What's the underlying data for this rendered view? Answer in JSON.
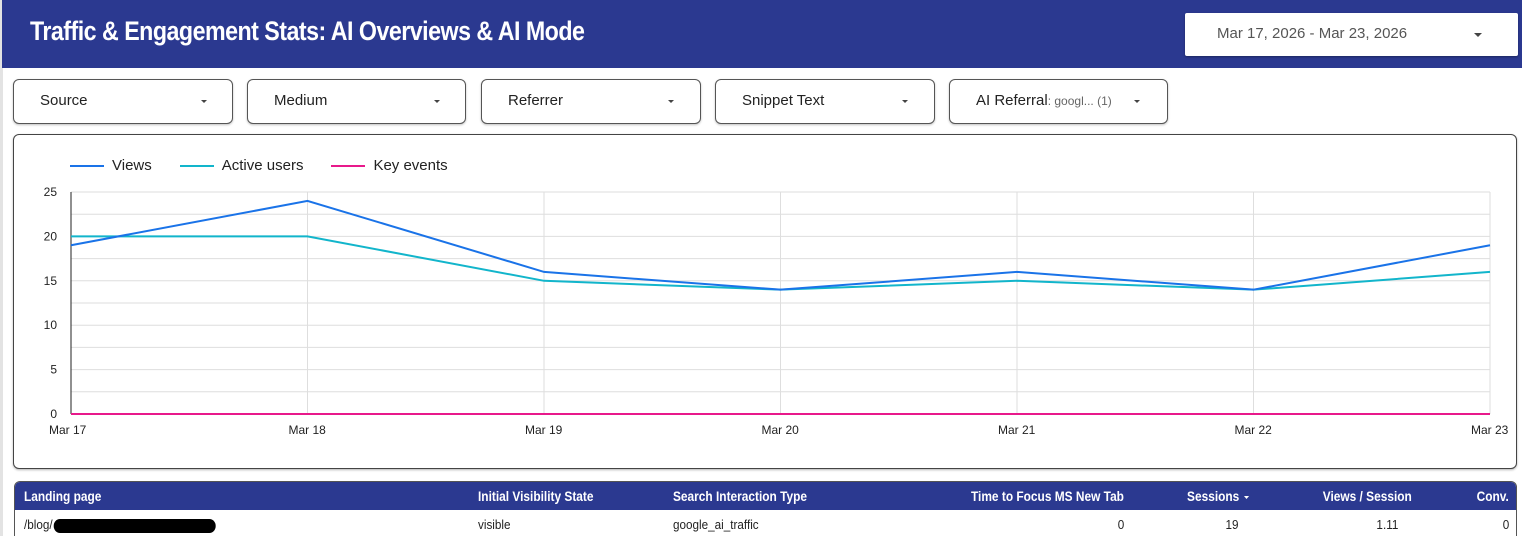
{
  "header": {
    "title": "Traffic & Engagement Stats: AI Overviews & AI Mode",
    "date_range": "Mar 17, 2026 - Mar 23, 2026",
    "background": "#2b3990"
  },
  "filters": [
    {
      "label": "Source",
      "value": ""
    },
    {
      "label": "Medium",
      "value": ""
    },
    {
      "label": "Referrer",
      "value": ""
    },
    {
      "label": "Snippet Text",
      "value": ""
    },
    {
      "label": "AI Referral",
      "value": ": googl... (1)"
    }
  ],
  "chart_data": {
    "type": "line",
    "title": "",
    "xlabel": "",
    "ylabel": "",
    "categories": [
      "Mar 17",
      "Mar 18",
      "Mar 19",
      "Mar 20",
      "Mar 21",
      "Mar 22",
      "Mar 23"
    ],
    "series": [
      {
        "name": "Views",
        "color": "#1a73e8",
        "values": [
          19,
          24,
          16,
          14,
          16,
          14,
          19
        ]
      },
      {
        "name": "Active users",
        "color": "#12b5cb",
        "values": [
          20,
          20,
          15,
          14,
          15,
          14,
          16
        ]
      },
      {
        "name": "Key events",
        "color": "#e8198b",
        "values": [
          0,
          0,
          0,
          0,
          0,
          0,
          0
        ]
      }
    ],
    "yticks": [
      0,
      5,
      10,
      15,
      20,
      25
    ],
    "ylim": [
      0,
      25
    ],
    "grid": true,
    "legend_position": "top-left"
  },
  "table": {
    "columns": [
      {
        "label": "Landing page",
        "sort": false
      },
      {
        "label": "Initial Visibility State",
        "sort": false
      },
      {
        "label": "Search Interaction Type",
        "sort": false
      },
      {
        "label": "Time to Focus MS New Tab",
        "sort": false
      },
      {
        "label": "Sessions",
        "sort": true
      },
      {
        "label": "Views / Session",
        "sort": false
      },
      {
        "label": "Conv.",
        "sort": false
      }
    ],
    "rows": [
      {
        "landing_page": "/blog/",
        "visibility": "visible",
        "interaction_type": "google_ai_traffic",
        "time_to_focus": "0",
        "sessions": "19",
        "views_per_session": "1.11",
        "conv": "0"
      }
    ]
  }
}
